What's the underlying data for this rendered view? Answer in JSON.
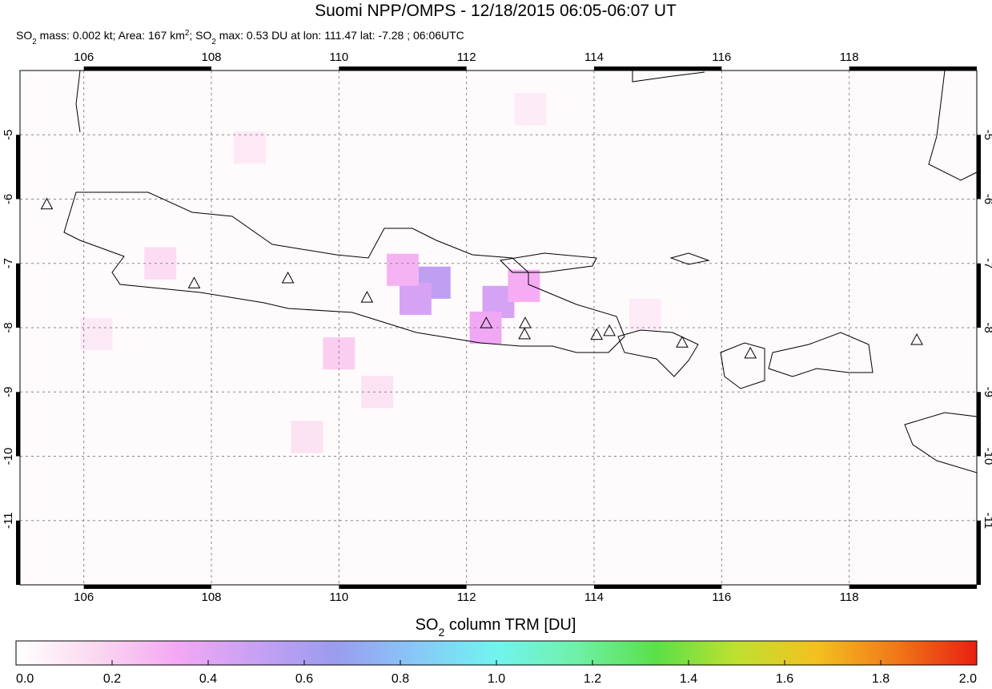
{
  "chart_data": {
    "type": "map",
    "title": "Suomi NPP/OMPS - 12/18/2015 06:05-06:07 UT",
    "subtitle_parts": [
      "SO",
      "2",
      " mass: 0.002 kt; Area: 167 km",
      "2",
      "; SO",
      "2",
      " max: 0.53 DU at lon: 111.47 lat: -7.28 ; 06:06UTC"
    ],
    "xlim": [
      105,
      120
    ],
    "ylim": [
      -12,
      -4
    ],
    "xticks": [
      106,
      108,
      110,
      112,
      114,
      116,
      118
    ],
    "yticks": [
      -5,
      -6,
      -7,
      -8,
      -9,
      -10,
      -11
    ],
    "grid": true,
    "cell_size": 0.5,
    "cells": {
      "lon": [
        111.5,
        111.2,
        112.5,
        112.3,
        111.0,
        110.0,
        107.2,
        109.5,
        113.0,
        108.6,
        106.2,
        112.9,
        110.6,
        114.8
      ],
      "lat": [
        -7.3,
        -7.55,
        -7.6,
        -8.0,
        -7.1,
        -8.4,
        -7.0,
        -9.7,
        -4.6,
        -5.2,
        -8.1,
        -7.35,
        -9.0,
        -7.8
      ],
      "values": [
        0.53,
        0.45,
        0.45,
        0.35,
        0.3,
        0.2,
        0.15,
        0.12,
        0.08,
        0.1,
        0.1,
        0.32,
        0.12,
        0.08
      ]
    },
    "volcanoes": {
      "lon": [
        105.42,
        107.73,
        109.2,
        110.44,
        112.31,
        112.92,
        112.91,
        114.04,
        114.24,
        115.38,
        116.45,
        119.06
      ],
      "lat": [
        -6.09,
        -7.32,
        -7.24,
        -7.54,
        -7.94,
        -7.94,
        -8.11,
        -8.12,
        -8.06,
        -8.24,
        -8.41,
        -8.2
      ]
    },
    "colorbar": {
      "label_parts": [
        "SO",
        "2",
        " column TRM [DU]"
      ],
      "lim": [
        0,
        2
      ],
      "ticks": [
        {
          "value": 0,
          "label": "0.0"
        },
        0.2,
        0.4,
        0.6,
        0.8,
        {
          "value": 1,
          "label": "1.0"
        },
        1.2,
        1.4,
        1.6,
        1.8,
        {
          "value": 2,
          "label": "2.0"
        }
      ],
      "colormap": [
        "#ffffff",
        "#fbd8f0",
        "#f4a8f4",
        "#c8a0f4",
        "#9a9cf0",
        "#88c8f8",
        "#70f4f0",
        "#70f0a8",
        "#5ae048",
        "#c0e030",
        "#f4c020",
        "#f07818",
        "#e82010"
      ]
    }
  }
}
